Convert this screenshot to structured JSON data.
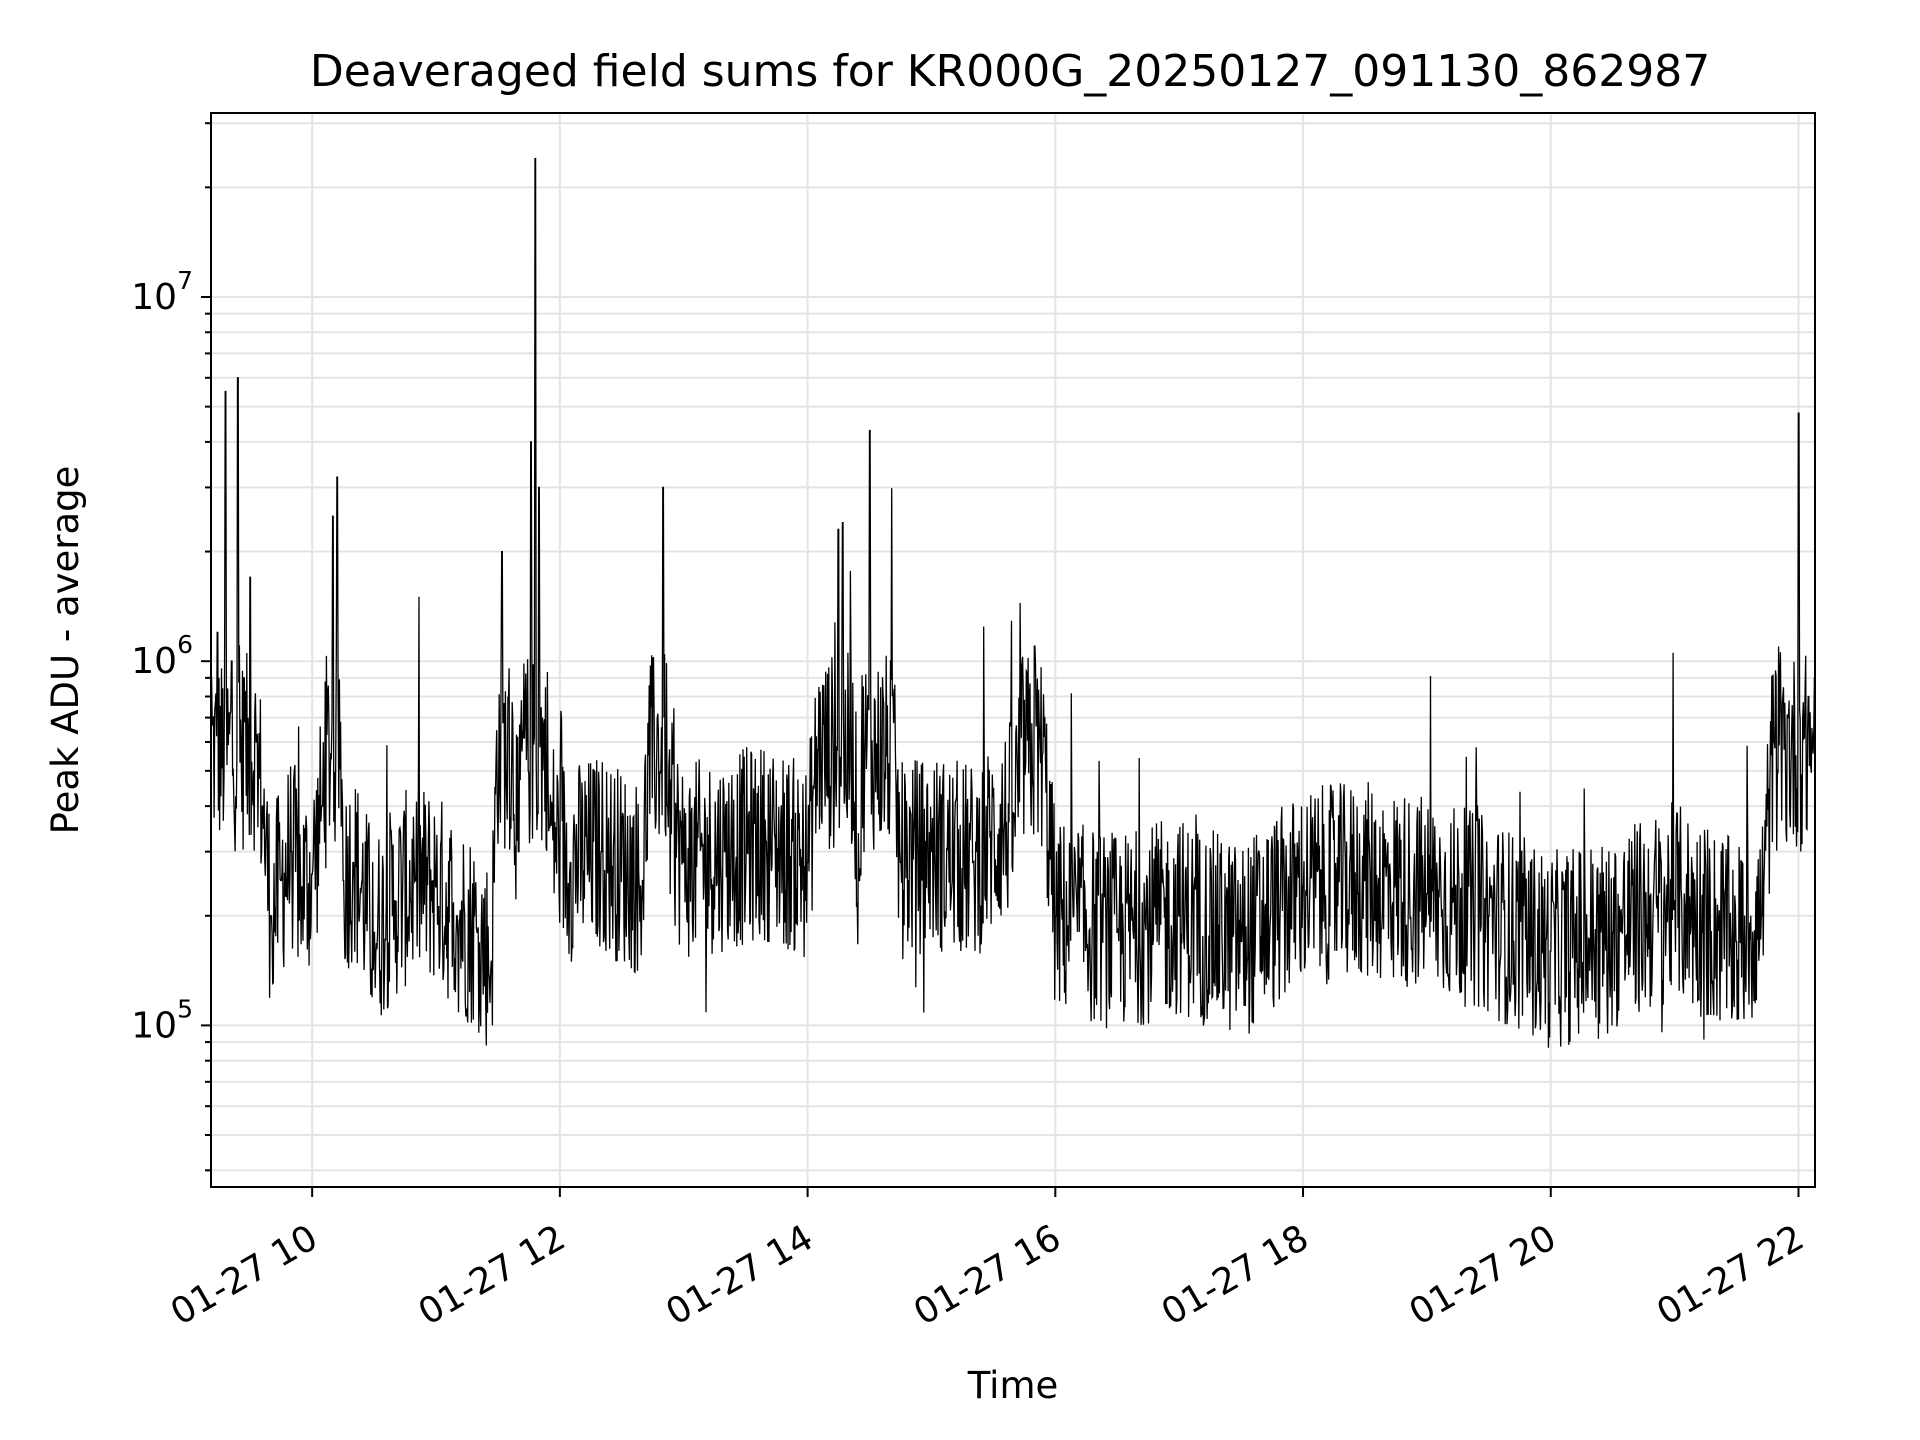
{
  "chart_data": {
    "type": "line",
    "title": "Deaveraged field sums for KR000G_20250127_091130_862987",
    "xlabel": "Time",
    "ylabel": "Peak ADU - average",
    "yscale": "log",
    "xlim": [
      "01-27 09:11",
      "01-27 22:08"
    ],
    "ylim": [
      36000,
      32000000
    ],
    "grid": true,
    "line_color": "#000000",
    "x_ticks": [
      "01-27 10",
      "01-27 12",
      "01-27 14",
      "01-27 16",
      "01-27 18",
      "01-27 20",
      "01-27 22"
    ],
    "y_ticks": [
      {
        "base": "10",
        "exp": "5",
        "value": 100000
      },
      {
        "base": "10",
        "exp": "6",
        "value": 1000000
      },
      {
        "base": "10",
        "exp": "7",
        "value": 10000000
      }
    ],
    "series": [
      {
        "x": [
          "01-27 09:11",
          "01-27 09:14",
          "01-27 09:18",
          "01-27 09:21",
          "01-27 09:24",
          "01-27 09:27",
          "01-27 09:30",
          "01-27 09:33",
          "01-27 09:36",
          "01-27 09:40",
          "01-27 09:45",
          "01-27 09:50",
          "01-27 09:55",
          "01-27 10:00",
          "01-27 10:05",
          "01-27 10:10",
          "01-27 10:12",
          "01-27 10:15",
          "01-27 10:20",
          "01-27 10:30",
          "01-27 10:40",
          "01-27 10:50",
          "01-27 11:00",
          "01-27 11:10",
          "01-27 11:20",
          "01-27 11:27",
          "01-27 11:32",
          "01-27 11:40",
          "01-27 11:46",
          "01-27 11:48",
          "01-27 11:50",
          "01-27 11:55",
          "01-27 12:05",
          "01-27 12:20",
          "01-27 12:40",
          "01-27 12:50",
          "01-27 12:52",
          "01-27 13:00",
          "01-27 13:20",
          "01-27 13:40",
          "01-27 14:00",
          "01-27 14:15",
          "01-27 14:17",
          "01-27 14:25",
          "01-27 14:30",
          "01-27 14:45",
          "01-27 15:00",
          "01-27 15:20",
          "01-27 15:40",
          "01-27 15:50",
          "01-27 16:00",
          "01-27 16:30",
          "01-27 17:00",
          "01-27 17:30",
          "01-27 18:00",
          "01-27 18:30",
          "01-27 19:00",
          "01-27 19:30",
          "01-27 20:00",
          "01-27 20:30",
          "01-27 21:00",
          "01-27 21:30",
          "01-27 21:42",
          "01-27 21:48",
          "01-27 21:55",
          "01-27 22:00",
          "01-27 22:05",
          "01-27 22:08"
        ],
        "y": [
          900000,
          1200000,
          5500000,
          1000000,
          6000000,
          900000,
          1700000,
          600000,
          400000,
          200000,
          250000,
          300000,
          240000,
          260000,
          400000,
          2500000,
          3200000,
          250000,
          280000,
          180000,
          220000,
          250000,
          240000,
          200000,
          180000,
          150000,
          2000000,
          300000,
          4000000,
          24000000,
          3000000,
          350000,
          280000,
          300000,
          250000,
          3000000,
          400000,
          280000,
          300000,
          320000,
          280000,
          2300000,
          2400000,
          250000,
          4300000,
          280000,
          300000,
          280000,
          380000,
          1100000,
          200000,
          180000,
          200000,
          170000,
          240000,
          250000,
          230000,
          200000,
          160000,
          180000,
          220000,
          170000,
          200000,
          600000,
          700000,
          4800000,
          800000,
          900000
        ]
      }
    ]
  }
}
